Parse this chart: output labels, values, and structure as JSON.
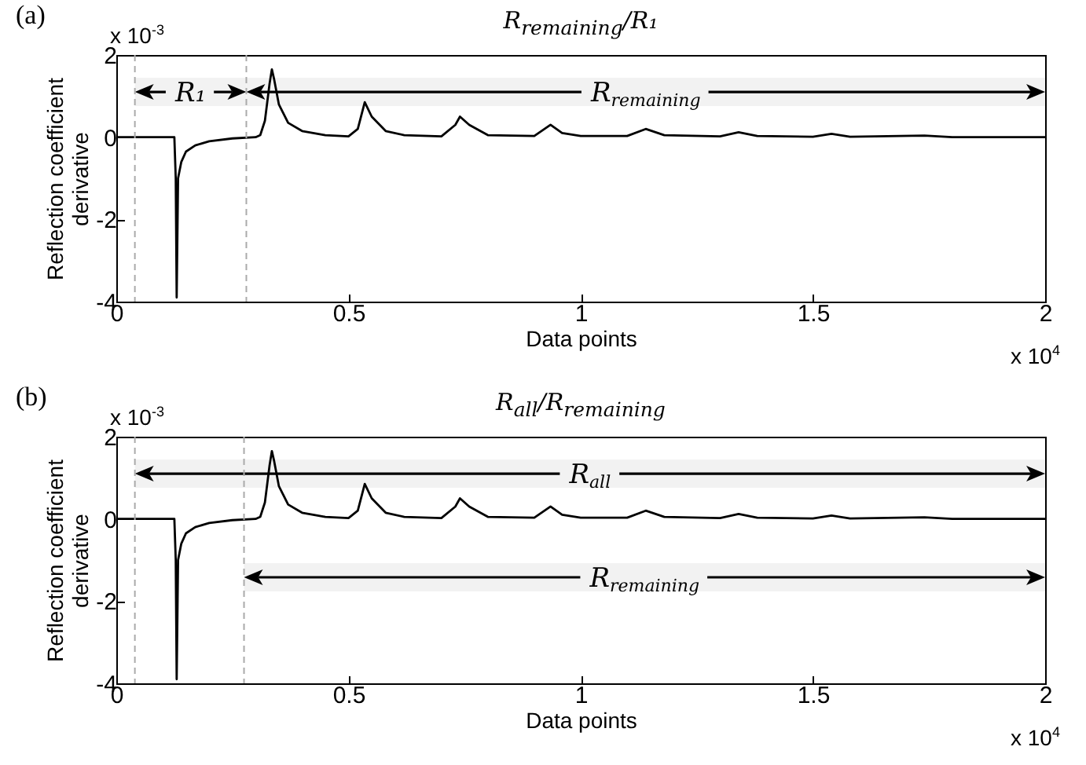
{
  "chart_data": [
    {
      "type": "line",
      "title": "R$_{remaining}$/R₁",
      "xlabel": "Data points",
      "ylabel": "Reflection coefficient derivative",
      "annotations": [
        "(a)",
        "x 10$^{-3}$",
        "x 10$^{4}$"
      ],
      "x": [
        0,
        0.1,
        0.125,
        0.128,
        0.13,
        0.133,
        0.14,
        0.15,
        0.17,
        0.2,
        0.25,
        0.3,
        0.31,
        0.32,
        0.33,
        0.335,
        0.34,
        0.35,
        0.37,
        0.4,
        0.45,
        0.5,
        0.52,
        0.535,
        0.55,
        0.58,
        0.62,
        0.7,
        0.73,
        0.74,
        0.76,
        0.8,
        0.9,
        0.935,
        0.96,
        1.0,
        1.1,
        1.14,
        1.18,
        1.3,
        1.34,
        1.38,
        1.5,
        1.54,
        1.58,
        1.74,
        1.8,
        2.0
      ],
      "series": [
        {
          "color": "#000000",
          "values": [
            0,
            0,
            0,
            -1,
            -3.9,
            -1.0,
            -0.6,
            -0.35,
            -0.2,
            -0.1,
            -0.03,
            0,
            0.05,
            0.4,
            1.3,
            1.65,
            1.4,
            0.8,
            0.35,
            0.15,
            0.05,
            0.02,
            0.2,
            0.85,
            0.5,
            0.15,
            0.05,
            0.02,
            0.3,
            0.5,
            0.3,
            0.05,
            0.03,
            0.3,
            0.1,
            0.03,
            0.03,
            0.2,
            0.05,
            0.02,
            0.12,
            0.03,
            0.01,
            0.08,
            0.01,
            0.04,
            0,
            0
          ]
        }
      ],
      "xlim": [
        0,
        2
      ],
      "xticks": [
        0,
        0.5,
        1,
        1.5,
        2
      ],
      "ylim": [
        -4,
        2
      ],
      "yticks": [
        -4,
        -2,
        0,
        2
      ],
      "grid": false,
      "line_style": "solid",
      "ref_lines": [
        {
          "axis": "x",
          "value": 0.04,
          "color": "#aaaaaa",
          "line_style": "dashed"
        },
        {
          "axis": "x",
          "value": 0.28,
          "color": "#aaaaaa",
          "line_style": "dashed"
        }
      ],
      "bands": [
        {
          "axis": "x",
          "from": 0.04,
          "to": 0.28,
          "label": "R₁"
        },
        {
          "axis": "x",
          "from": 0.28,
          "to": 2,
          "label": "R$_{remaining}$"
        }
      ]
    },
    {
      "type": "line",
      "title": "R$_{all}$/R$_{remaining}$",
      "xlabel": "Data points",
      "ylabel": "Reflection coefficient derivative",
      "annotations": [
        "(b)",
        "x 10$^{-3}$",
        "x 10$^{4}$"
      ],
      "x": [
        0,
        0.1,
        0.125,
        0.128,
        0.13,
        0.133,
        0.14,
        0.15,
        0.17,
        0.2,
        0.25,
        0.3,
        0.31,
        0.32,
        0.33,
        0.335,
        0.34,
        0.35,
        0.37,
        0.4,
        0.45,
        0.5,
        0.52,
        0.535,
        0.55,
        0.58,
        0.62,
        0.7,
        0.73,
        0.74,
        0.76,
        0.8,
        0.9,
        0.935,
        0.96,
        1.0,
        1.1,
        1.14,
        1.18,
        1.3,
        1.34,
        1.38,
        1.5,
        1.54,
        1.58,
        1.74,
        1.8,
        2.0
      ],
      "series": [
        {
          "color": "#000000",
          "values": [
            0,
            0,
            0,
            -1,
            -3.9,
            -1.0,
            -0.6,
            -0.35,
            -0.2,
            -0.1,
            -0.03,
            0,
            0.05,
            0.4,
            1.3,
            1.65,
            1.4,
            0.8,
            0.35,
            0.15,
            0.05,
            0.02,
            0.2,
            0.85,
            0.5,
            0.15,
            0.05,
            0.02,
            0.3,
            0.5,
            0.3,
            0.05,
            0.03,
            0.3,
            0.1,
            0.03,
            0.03,
            0.2,
            0.05,
            0.02,
            0.12,
            0.03,
            0.01,
            0.08,
            0.01,
            0.04,
            0,
            0
          ]
        }
      ],
      "xlim": [
        0,
        2
      ],
      "xticks": [
        0,
        0.5,
        1,
        1.5,
        2
      ],
      "ylim": [
        -4,
        2
      ],
      "yticks": [
        -4,
        -2,
        0,
        2
      ],
      "grid": false,
      "line_style": "solid",
      "ref_lines": [
        {
          "axis": "x",
          "value": 0.04,
          "color": "#aaaaaa",
          "line_style": "dashed"
        },
        {
          "axis": "x",
          "value": 0.275,
          "color": "#aaaaaa",
          "line_style": "dashed"
        }
      ],
      "bands": [
        {
          "axis": "x",
          "from": 0.04,
          "to": 2,
          "label": "R$_{all}$"
        },
        {
          "axis": "x",
          "from": 0.275,
          "to": 2,
          "label": "R$_{remaining}$"
        }
      ]
    }
  ]
}
